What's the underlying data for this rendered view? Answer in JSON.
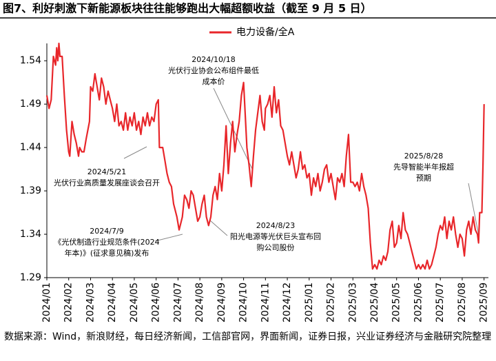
{
  "chart_data": {
    "type": "line",
    "title": "图7、利好刺激下新能源板块往往能够跑出大幅超额收益（截至 9 月 5 日）",
    "source": "数据来源：Wind，新浪财经，每日经济新闻，工信部官网，界面新闻，证券日报，兴业证券经济与金融研究院整理",
    "x": [
      0,
      0.1,
      0.2,
      0.3,
      0.4,
      0.45,
      0.5,
      0.55,
      0.6,
      0.7,
      0.8,
      0.9,
      1.0,
      1.05,
      1.15,
      1.25,
      1.35,
      1.45,
      1.5,
      1.6,
      1.7,
      1.8,
      1.95,
      2.0,
      2.1,
      2.2,
      2.3,
      2.4,
      2.5,
      2.6,
      2.7,
      2.8,
      2.9,
      3.0,
      3.1,
      3.2,
      3.3,
      3.4,
      3.5,
      3.6,
      3.7,
      3.8,
      3.9,
      4.0,
      4.1,
      4.2,
      4.3,
      4.4,
      4.5,
      4.6,
      4.7,
      4.8,
      4.9,
      5.0,
      5.1,
      5.15,
      5.3,
      5.4,
      5.5,
      5.6,
      5.7,
      5.8,
      5.95,
      6.05,
      6.1,
      6.2,
      6.3,
      6.4,
      6.5,
      6.6,
      6.7,
      6.8,
      6.9,
      7.0,
      7.1,
      7.2,
      7.3,
      7.4,
      7.5,
      7.6,
      7.7,
      7.8,
      7.9,
      8.0,
      8.1,
      8.2,
      8.3,
      8.4,
      8.5,
      8.6,
      8.7,
      8.8,
      8.9,
      9.0,
      9.05,
      9.15,
      9.25,
      9.35,
      9.45,
      9.55,
      9.65,
      9.75,
      9.85,
      9.95,
      10.0,
      10.1,
      10.2,
      10.3,
      10.4,
      10.5,
      10.6,
      10.7,
      10.8,
      10.9,
      11.0,
      11.1,
      11.2,
      11.3,
      11.4,
      11.5,
      11.6,
      11.7,
      11.8,
      11.9,
      12.0,
      12.1,
      12.2,
      12.3,
      12.4,
      12.5,
      12.6,
      12.7,
      12.8,
      12.9,
      13.0,
      13.1,
      13.2,
      13.3,
      13.4,
      13.5,
      13.6,
      13.7,
      13.8,
      13.9,
      14.0,
      14.1,
      14.2,
      14.3,
      14.4,
      14.5,
      14.6,
      14.7,
      14.8,
      14.9,
      15.0,
      15.1,
      15.2,
      15.3,
      15.4,
      15.5,
      15.6,
      15.7,
      15.8,
      15.9,
      16.0,
      16.1,
      16.2,
      16.3,
      16.4,
      16.5,
      16.6,
      16.7,
      16.8,
      16.9,
      17.0,
      17.1,
      17.2,
      17.3,
      17.4,
      17.5,
      17.6,
      17.7,
      17.8,
      17.9,
      18.0,
      18.1,
      18.2,
      18.3,
      18.4,
      18.5,
      18.6,
      18.7,
      18.8,
      18.9,
      19.0,
      19.1,
      19.2,
      19.3,
      19.4,
      19.5,
      19.6,
      19.7,
      19.75,
      19.8,
      19.9,
      19.95,
      20.0
    ],
    "series": [
      {
        "name": "电力设备/全A",
        "color": "#e8262a",
        "values": [
          1.5,
          1.485,
          1.495,
          1.545,
          1.535,
          1.555,
          1.54,
          1.56,
          1.545,
          1.545,
          1.5,
          1.46,
          1.435,
          1.43,
          1.47,
          1.455,
          1.445,
          1.43,
          1.44,
          1.435,
          1.435,
          1.45,
          1.47,
          1.51,
          1.505,
          1.525,
          1.51,
          1.495,
          1.52,
          1.51,
          1.49,
          1.505,
          1.495,
          1.485,
          1.47,
          1.49,
          1.465,
          1.47,
          1.46,
          1.48,
          1.46,
          1.475,
          1.465,
          1.48,
          1.46,
          1.47,
          1.455,
          1.475,
          1.465,
          1.48,
          1.465,
          1.475,
          1.47,
          1.49,
          1.495,
          1.44,
          1.44,
          1.425,
          1.41,
          1.4,
          1.395,
          1.375,
          1.36,
          1.345,
          1.35,
          1.36,
          1.385,
          1.38,
          1.37,
          1.39,
          1.385,
          1.37,
          1.355,
          1.36,
          1.375,
          1.385,
          1.36,
          1.35,
          1.36,
          1.385,
          1.395,
          1.38,
          1.41,
          1.39,
          1.42,
          1.465,
          1.41,
          1.445,
          1.47,
          1.435,
          1.455,
          1.47,
          1.5,
          1.515,
          1.49,
          1.44,
          1.42,
          1.395,
          1.43,
          1.46,
          1.48,
          1.5,
          1.47,
          1.46,
          1.485,
          1.49,
          1.5,
          1.475,
          1.51,
          1.48,
          1.495,
          1.465,
          1.46,
          1.445,
          1.43,
          1.42,
          1.435,
          1.42,
          1.405,
          1.415,
          1.435,
          1.415,
          1.42,
          1.405,
          1.41,
          1.385,
          1.405,
          1.395,
          1.41,
          1.39,
          1.4,
          1.415,
          1.42,
          1.4,
          1.41,
          1.395,
          1.38,
          1.405,
          1.4,
          1.41,
          1.395,
          1.43,
          1.455,
          1.4,
          1.4,
          1.395,
          1.4,
          1.39,
          1.41,
          1.395,
          1.385,
          1.37,
          1.33,
          1.3,
          1.305,
          1.3,
          1.31,
          1.305,
          1.315,
          1.31,
          1.32,
          1.345,
          1.355,
          1.325,
          1.33,
          1.35,
          1.335,
          1.365,
          1.345,
          1.34,
          1.33,
          1.32,
          1.31,
          1.3,
          1.305,
          1.3,
          1.305,
          1.3,
          1.31,
          1.3,
          1.305,
          1.315,
          1.325,
          1.34,
          1.35,
          1.345,
          1.36,
          1.335,
          1.355,
          1.345,
          1.36,
          1.34,
          1.325,
          1.34,
          1.335,
          1.315,
          1.345,
          1.355,
          1.34,
          1.36,
          1.345,
          1.34,
          1.33,
          1.365,
          1.365,
          1.42,
          1.49
        ]
      }
    ],
    "xlim": [
      0,
      20.2
    ],
    "xticks": [
      {
        "value": 0,
        "label": "2024/01"
      },
      {
        "value": 1,
        "label": "2024/02"
      },
      {
        "value": 2,
        "label": "2024/03"
      },
      {
        "value": 3,
        "label": "2024/04"
      },
      {
        "value": 4,
        "label": "2024/05"
      },
      {
        "value": 5,
        "label": "2024/06"
      },
      {
        "value": 6,
        "label": "2024/07"
      },
      {
        "value": 7,
        "label": "2024/08"
      },
      {
        "value": 8,
        "label": "2024/09"
      },
      {
        "value": 9,
        "label": "2024/10"
      },
      {
        "value": 10,
        "label": "2024/11"
      },
      {
        "value": 11,
        "label": "2024/12"
      },
      {
        "value": 12,
        "label": "2025/01"
      },
      {
        "value": 13,
        "label": "2025/02"
      },
      {
        "value": 14,
        "label": "2025/03"
      },
      {
        "value": 15,
        "label": "2025/04"
      },
      {
        "value": 16,
        "label": "2025/05"
      },
      {
        "value": 17,
        "label": "2025/06"
      },
      {
        "value": 18,
        "label": "2025/07"
      },
      {
        "value": 19,
        "label": "2025/08"
      },
      {
        "value": 20,
        "label": "2025/09"
      }
    ],
    "ylim": [
      1.29,
      1.56
    ],
    "yticks": [
      1.29,
      1.34,
      1.39,
      1.44,
      1.49,
      1.54
    ],
    "annotations": [
      [
        "2024/10/18",
        "光伏行业协会公布组件最低",
        "成本价"
      ],
      [
        "2024/5/21",
        "光伏行业高质量发展座谈会召开"
      ],
      [
        "2024/7/9",
        "《光伏制造行业规范条件(2024",
        "年本)》(征求意见稿)发布"
      ],
      [
        "2024/8/23",
        "阳光电源等光伏巨头宣布回",
        "购公司股份"
      ],
      [
        "2025/8/28",
        "先导智能半年报超",
        "预期"
      ]
    ]
  }
}
